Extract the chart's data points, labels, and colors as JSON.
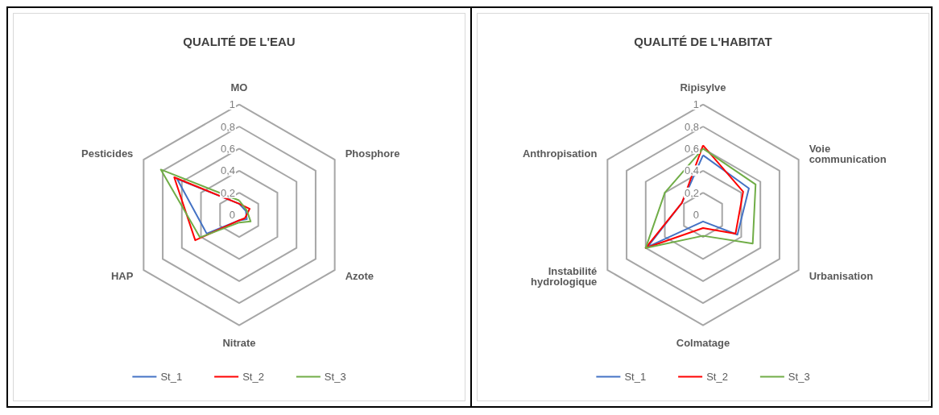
{
  "chart_data": [
    {
      "type": "radar",
      "title": "QUALITÉ DE L'EAU",
      "categories": [
        "MO",
        "Phosphore",
        "Azote",
        "Nitrate",
        "HAP",
        "Pesticides"
      ],
      "ylim": [
        0,
        1
      ],
      "yticks": [
        {
          "value": 0,
          "label": "0"
        },
        {
          "value": 0.2,
          "label": "0,2"
        },
        {
          "value": 0.4,
          "label": "0,4"
        },
        {
          "value": 0.6,
          "label": "0,6"
        },
        {
          "value": 0.8,
          "label": "0,8"
        },
        {
          "value": 1,
          "label": "1"
        }
      ],
      "grid": true,
      "legend": "bottom",
      "series": [
        {
          "name": "St_1",
          "color": "#4472c4",
          "values": [
            0.1,
            0.07,
            0.08,
            0.05,
            0.34,
            0.65
          ]
        },
        {
          "name": "St_2",
          "color": "#ff0000",
          "values": [
            0.1,
            0.11,
            0.06,
            0.05,
            0.46,
            0.68
          ]
        },
        {
          "name": "St_3",
          "color": "#70ad47",
          "values": [
            0.13,
            0.08,
            0.12,
            0.07,
            0.41,
            0.82
          ]
        }
      ]
    },
    {
      "type": "radar",
      "title": "QUALITÉ DE L'HABITAT",
      "categories": [
        "Ripisylve",
        "Voie communication",
        "Urbanisation",
        "Colmatage",
        "Instabilité hydrologique",
        "Anthropisation"
      ],
      "ylim": [
        0,
        1
      ],
      "yticks": [
        {
          "value": 0,
          "label": "0"
        },
        {
          "value": 0.2,
          "label": "0,2"
        },
        {
          "value": 0.4,
          "label": "0,4"
        },
        {
          "value": 0.6,
          "label": "0,6"
        },
        {
          "value": 0.8,
          "label": "0,8"
        },
        {
          "value": 1,
          "label": "1"
        }
      ],
      "grid": true,
      "legend": "bottom",
      "series": [
        {
          "name": "St_1",
          "color": "#4472c4",
          "values": [
            0.54,
            0.48,
            0.36,
            0.06,
            0.58,
            0.22
          ]
        },
        {
          "name": "St_2",
          "color": "#ff0000",
          "values": [
            0.63,
            0.42,
            0.34,
            0.12,
            0.6,
            0.22
          ]
        },
        {
          "name": "St_3",
          "color": "#70ad47",
          "values": [
            0.6,
            0.55,
            0.52,
            0.19,
            0.6,
            0.4
          ]
        }
      ]
    }
  ]
}
